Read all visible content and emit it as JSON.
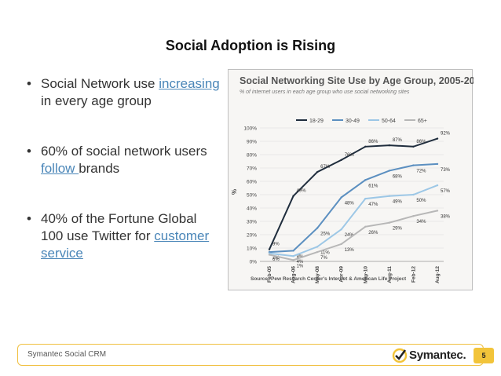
{
  "slide": {
    "title": "Social Adoption is Rising",
    "bullets": [
      {
        "pre": "Social Network use ",
        "link": "increasing",
        "post": " in every age group"
      },
      {
        "pre": "60% of social network users ",
        "link": "follow ",
        "post": "brands"
      },
      {
        "pre": "40% of the Fortune Global 100 use Twitter for ",
        "link": "customer service",
        "post": ""
      }
    ]
  },
  "footer": {
    "label": "Symantec Social CRM",
    "logo_text": "Symantec.",
    "page_number": "5",
    "logo_icon": "checkmark-circle-icon"
  },
  "colors": {
    "link": "#4a86b8",
    "footer_accent": "#f2c43a",
    "series": [
      "#1f2d3d",
      "#5b8fc0",
      "#9cc7e6",
      "#b7b7b7"
    ]
  },
  "chart_data": {
    "type": "line",
    "title": "Social Networking Site Use by Age Group, 2005-2012",
    "subtitle": "% of internet users in each age group who use social networking sites",
    "ylabel": "%",
    "source": "Source: Pew Research Center's Internet & American Life Project",
    "x": [
      "Feb-05",
      "Aug-06",
      "May-08",
      "Apr-09",
      "May-10",
      "Aug-11",
      "Feb-12",
      "Aug-12"
    ],
    "ylim": [
      0,
      100
    ],
    "yticks": [
      "0%",
      "10%",
      "20%",
      "30%",
      "40%",
      "50%",
      "60%",
      "70%",
      "80%",
      "90%",
      "100%"
    ],
    "legend_position": "top",
    "series": [
      {
        "name": "18-29",
        "values": [
          9,
          49,
          67,
          76,
          86,
          87,
          86,
          92
        ],
        "labels": [
          "9%",
          "49%",
          "67%",
          "76%",
          "86%",
          "87%",
          "86%",
          "92%"
        ]
      },
      {
        "name": "30-49",
        "values": [
          7,
          8,
          25,
          48,
          61,
          68,
          72,
          73
        ],
        "labels": [
          "7%",
          "8%",
          "25%",
          "48%",
          "61%",
          "68%",
          "72%",
          "73%"
        ]
      },
      {
        "name": "50-64",
        "values": [
          6,
          4,
          11,
          24,
          47,
          49,
          50,
          57
        ],
        "labels": [
          "6%",
          "4%",
          "11%",
          "24%",
          "47%",
          "49%",
          "50%",
          "57%"
        ]
      },
      {
        "name": "65+",
        "values": [
          5,
          1,
          7,
          13,
          26,
          29,
          34,
          38
        ],
        "labels": [
          "",
          "1%",
          "7%",
          "13%",
          "26%",
          "29%",
          "34%",
          "38%"
        ]
      }
    ]
  }
}
